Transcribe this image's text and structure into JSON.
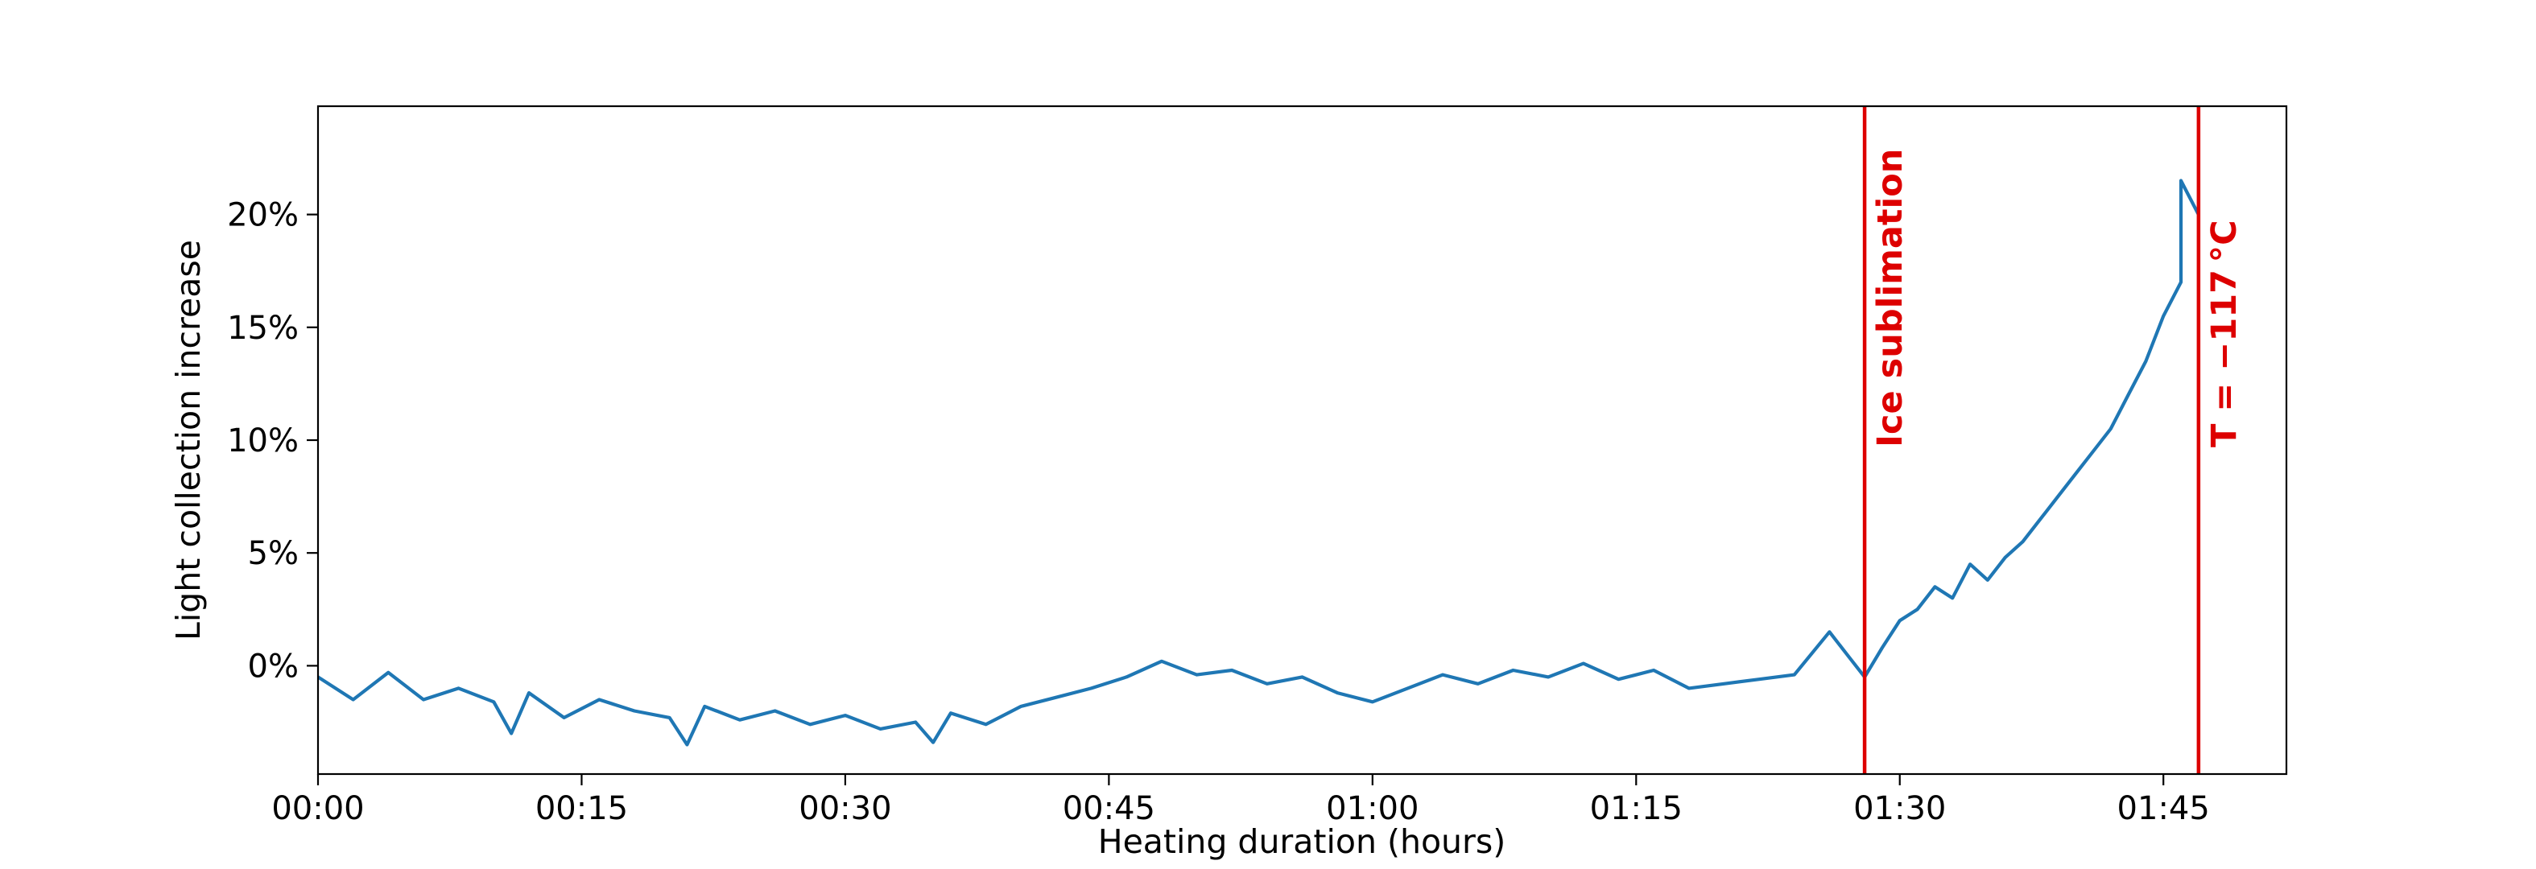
{
  "chart_data": {
    "type": "line",
    "title": "",
    "xlabel": "Heating duration (hours)",
    "ylabel": "Light collection increase",
    "x_unit": "hours:minutes",
    "xlim": [
      "00:00",
      "01:52"
    ],
    "ylim": [
      -4.8,
      24.8
    ],
    "x_ticks": [
      "00:00",
      "00:15",
      "00:30",
      "00:45",
      "01:00",
      "01:15",
      "01:30",
      "01:45"
    ],
    "y_ticks": [
      "0%",
      "5%",
      "10%",
      "15%",
      "20%"
    ],
    "y_tick_values": [
      0,
      5,
      10,
      15,
      20
    ],
    "grid": false,
    "series": [
      {
        "color": "#1f77b4",
        "x": [
          "00:00",
          "00:02",
          "00:04",
          "00:06",
          "00:08",
          "00:10",
          "00:11",
          "00:12",
          "00:14",
          "00:16",
          "00:18",
          "00:20",
          "00:21",
          "00:22",
          "00:24",
          "00:26",
          "00:28",
          "00:30",
          "00:32",
          "00:34",
          "00:35",
          "00:36",
          "00:38",
          "00:40",
          "00:42",
          "00:44",
          "00:46",
          "00:48",
          "00:50",
          "00:52",
          "00:54",
          "00:56",
          "00:58",
          "01:00",
          "01:02",
          "01:04",
          "01:06",
          "01:08",
          "01:10",
          "01:12",
          "01:14",
          "01:16",
          "01:18",
          "01:20",
          "01:22",
          "01:24",
          "01:26",
          "01:27",
          "01:28",
          "01:29",
          "01:30",
          "01:31",
          "01:32",
          "01:33",
          "01:34",
          "01:35",
          "01:36",
          "01:37",
          "01:38",
          "01:39",
          "01:40",
          "01:41",
          "01:42",
          "01:43",
          "01:44",
          "01:45",
          "01:46",
          "01:46",
          "01:47"
        ],
        "values": [
          -0.5,
          -1.5,
          -0.3,
          -1.5,
          -1.0,
          -1.6,
          -3.0,
          -1.2,
          -2.3,
          -1.5,
          -2.0,
          -2.3,
          -3.5,
          -1.8,
          -2.4,
          -2.0,
          -2.6,
          -2.2,
          -2.8,
          -2.5,
          -3.4,
          -2.1,
          -2.6,
          -1.8,
          -1.4,
          -1.0,
          -0.5,
          0.2,
          -0.4,
          -0.2,
          -0.8,
          -0.5,
          -1.2,
          -1.6,
          -1.0,
          -0.4,
          -0.8,
          -0.2,
          -0.5,
          0.1,
          -0.6,
          -0.2,
          -1.0,
          -0.8,
          -0.6,
          -0.4,
          1.5,
          0.5,
          -0.5,
          0.8,
          2.0,
          2.5,
          3.5,
          3.0,
          4.5,
          3.8,
          4.8,
          5.5,
          6.5,
          7.5,
          8.5,
          9.5,
          10.5,
          12.0,
          13.5,
          15.5,
          17.0,
          21.5,
          20.0
        ]
      }
    ],
    "annotations": [
      {
        "text": "Ice sublimation",
        "x": "01:28",
        "color": "#dd0000"
      },
      {
        "text": "T = −117 °C",
        "x": "01:47",
        "color": "#dd0000"
      }
    ]
  }
}
